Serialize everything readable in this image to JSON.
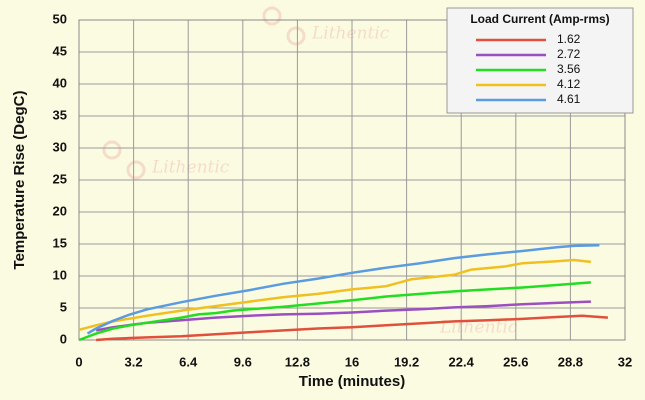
{
  "chart_data": {
    "type": "line",
    "xlabel": "Time (minutes)",
    "ylabel": "Temperature Rise (DegC)",
    "watermark": "Lithentic",
    "legend_title": "Load Current (Amp-rms)",
    "legend": "upper right",
    "grid": true,
    "xlim": [
      0,
      32
    ],
    "xticks": [
      0,
      3.2,
      6.4,
      9.6,
      12.8,
      16,
      19.2,
      22.4,
      25.6,
      28.8,
      32
    ],
    "ylim": [
      0,
      50
    ],
    "yticks": [
      0,
      5,
      10,
      15,
      20,
      25,
      30,
      35,
      40,
      45,
      50
    ],
    "series": [
      {
        "name": "1.62",
        "color": "#e0503c",
        "x": [
          1,
          2,
          4,
          6,
          8,
          10,
          12,
          14,
          16,
          18,
          20,
          22,
          24,
          26,
          28,
          29.5,
          31
        ],
        "values": [
          0,
          0.2,
          0.4,
          0.6,
          0.9,
          1.2,
          1.5,
          1.8,
          2.0,
          2.3,
          2.6,
          2.9,
          3.1,
          3.3,
          3.6,
          3.8,
          3.5
        ]
      },
      {
        "name": "2.72",
        "color": "#9b4fc0",
        "x": [
          1,
          2,
          4,
          6,
          8,
          10,
          12,
          14,
          16,
          18,
          20,
          22,
          24,
          26,
          28,
          30
        ],
        "values": [
          1.5,
          2.0,
          2.7,
          3.1,
          3.5,
          3.8,
          4.0,
          4.1,
          4.3,
          4.6,
          4.8,
          5.1,
          5.3,
          5.6,
          5.8,
          6.0
        ]
      },
      {
        "name": "3.56",
        "color": "#22dd22",
        "x": [
          0,
          1,
          2,
          3,
          4,
          6,
          7,
          8,
          9,
          10,
          12,
          14,
          16,
          18,
          20,
          22,
          24,
          26,
          28,
          30
        ],
        "values": [
          0,
          1.0,
          1.8,
          2.3,
          2.7,
          3.5,
          4.0,
          4.2,
          4.6,
          4.8,
          5.2,
          5.7,
          6.2,
          6.8,
          7.2,
          7.6,
          7.9,
          8.2,
          8.6,
          9.0
        ]
      },
      {
        "name": "4.12",
        "color": "#f0c020",
        "x": [
          0,
          1,
          2,
          4,
          6,
          8,
          10,
          12,
          14,
          16,
          18,
          19.5,
          22,
          23,
          25,
          26,
          28,
          29,
          30
        ],
        "values": [
          1.6,
          2.3,
          2.9,
          3.8,
          4.6,
          5.3,
          6.0,
          6.7,
          7.2,
          7.9,
          8.4,
          9.5,
          10.2,
          11.0,
          11.5,
          12.0,
          12.3,
          12.5,
          12.2
        ]
      },
      {
        "name": "4.61",
        "color": "#5b9be0",
        "x": [
          0.5,
          1,
          2,
          3,
          4,
          6,
          8,
          10,
          12,
          14,
          16,
          18,
          20,
          22,
          24,
          26,
          28,
          29,
          30.5
        ],
        "values": [
          1.0,
          1.8,
          3.0,
          4.0,
          4.8,
          5.9,
          6.9,
          7.8,
          8.8,
          9.6,
          10.5,
          11.3,
          12.0,
          12.8,
          13.4,
          13.9,
          14.5,
          14.7,
          14.8
        ]
      }
    ]
  }
}
